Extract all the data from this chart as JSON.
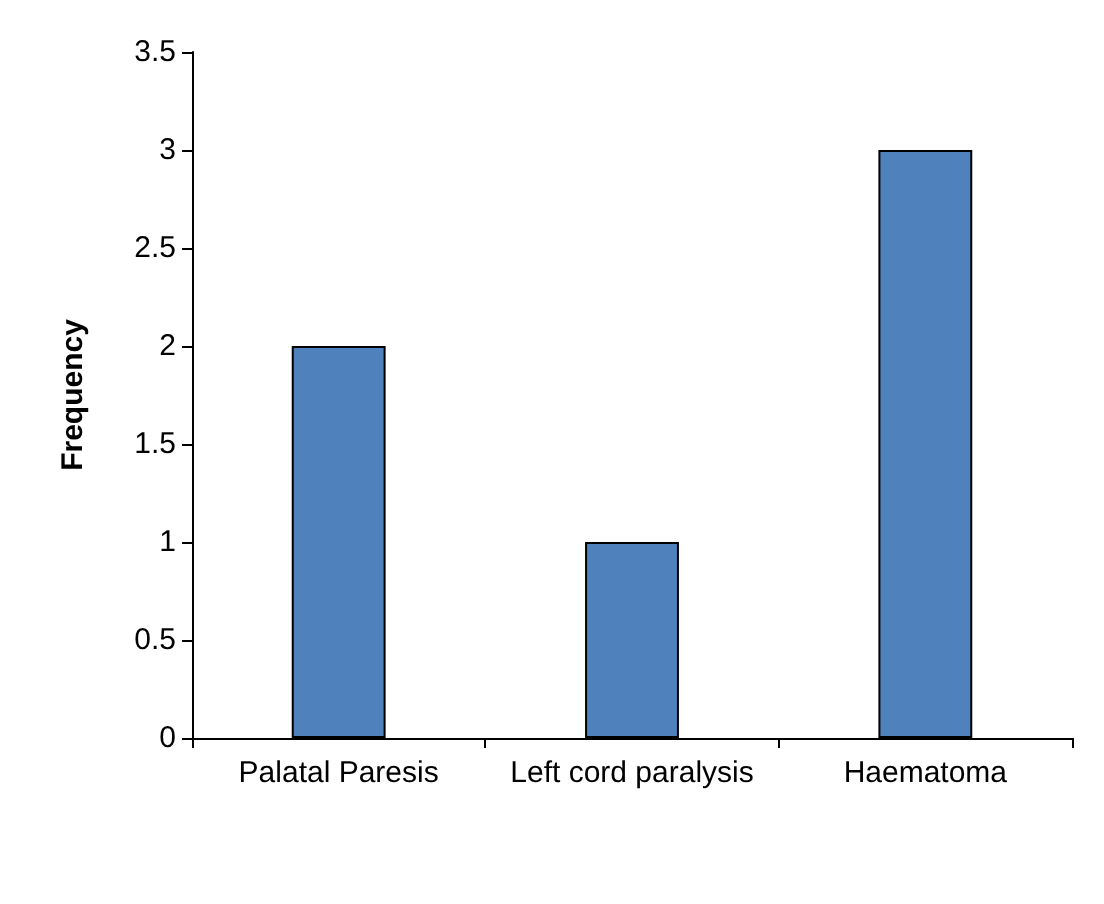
{
  "chart_data": {
    "type": "bar",
    "ylabel": "Frequency",
    "categories": [
      "Palatal Paresis",
      "Left cord paralysis",
      "Haematoma"
    ],
    "values": [
      2,
      1,
      3
    ],
    "color": "#4f81bd",
    "ylim": [
      0,
      3.5
    ],
    "yticks": [
      0,
      0.5,
      1,
      1.5,
      2,
      2.5,
      3,
      3.5
    ],
    "grid": false
  }
}
